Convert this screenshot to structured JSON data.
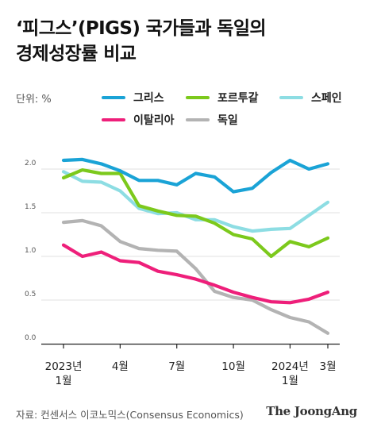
{
  "header": {
    "title_line1": "‘피그스’(PIGS) 국가들과 독일의",
    "title_line2": "경제성장률 비교"
  },
  "unit_label": "단위: %",
  "footer": {
    "source": "자료: 컨센서스 이코노믹스(Consensus Economics)",
    "logo": "The JoongAng"
  },
  "colors": {
    "greece": "#1aa3d6",
    "portugal": "#7cc91c",
    "spain": "#8ddde3",
    "italy": "#ee1f7a",
    "germany": "#b3b3b3",
    "grid": "#e2e2e2",
    "axis": "#222222",
    "tick_text": "#555555"
  },
  "chart_data": {
    "type": "line",
    "y_ticks": [
      "0.0",
      "0.5",
      "1.0",
      "1.5",
      "2.0"
    ],
    "ylim": [
      0,
      2.2
    ],
    "x_ticks": [
      {
        "index": 0,
        "lines": [
          "2023년",
          "1월"
        ]
      },
      {
        "index": 3,
        "lines": [
          "4월"
        ]
      },
      {
        "index": 6,
        "lines": [
          "7월"
        ]
      },
      {
        "index": 9,
        "lines": [
          "10월"
        ]
      },
      {
        "index": 12,
        "lines": [
          "2024년",
          "1월"
        ]
      },
      {
        "index": 14,
        "lines": [
          "3월"
        ]
      }
    ],
    "months": [
      "2023-01",
      "2023-02",
      "2023-03",
      "2023-04",
      "2023-05",
      "2023-06",
      "2023-07",
      "2023-08",
      "2023-09",
      "2023-10",
      "2023-11",
      "2023-12",
      "2024-01",
      "2024-02",
      "2024-03"
    ],
    "series": [
      {
        "name": "그리스",
        "key": "greece",
        "values": [
          2.1,
          2.11,
          2.06,
          1.98,
          1.87,
          1.87,
          1.82,
          1.95,
          1.91,
          1.74,
          1.78,
          1.96,
          2.1,
          2.0,
          2.06
        ]
      },
      {
        "name": "포르투갈",
        "key": "portugal",
        "values": [
          1.9,
          1.99,
          1.95,
          1.95,
          1.58,
          1.52,
          1.47,
          1.46,
          1.38,
          1.25,
          1.2,
          1.0,
          1.17,
          1.11,
          1.21
        ]
      },
      {
        "name": "스페인",
        "key": "spain",
        "values": [
          1.97,
          1.86,
          1.85,
          1.75,
          1.55,
          1.49,
          1.5,
          1.42,
          1.42,
          1.34,
          1.29,
          1.31,
          1.32,
          1.47,
          1.62
        ]
      },
      {
        "name": "이탈리아",
        "key": "italy",
        "values": [
          1.13,
          1.0,
          1.05,
          0.95,
          0.93,
          0.83,
          0.79,
          0.74,
          0.67,
          0.59,
          0.53,
          0.48,
          0.47,
          0.51,
          0.59
        ]
      },
      {
        "name": "독일",
        "key": "germany",
        "values": [
          1.39,
          1.41,
          1.35,
          1.17,
          1.09,
          1.07,
          1.06,
          0.86,
          0.6,
          0.53,
          0.5,
          0.39,
          0.3,
          0.25,
          0.12
        ]
      }
    ]
  }
}
